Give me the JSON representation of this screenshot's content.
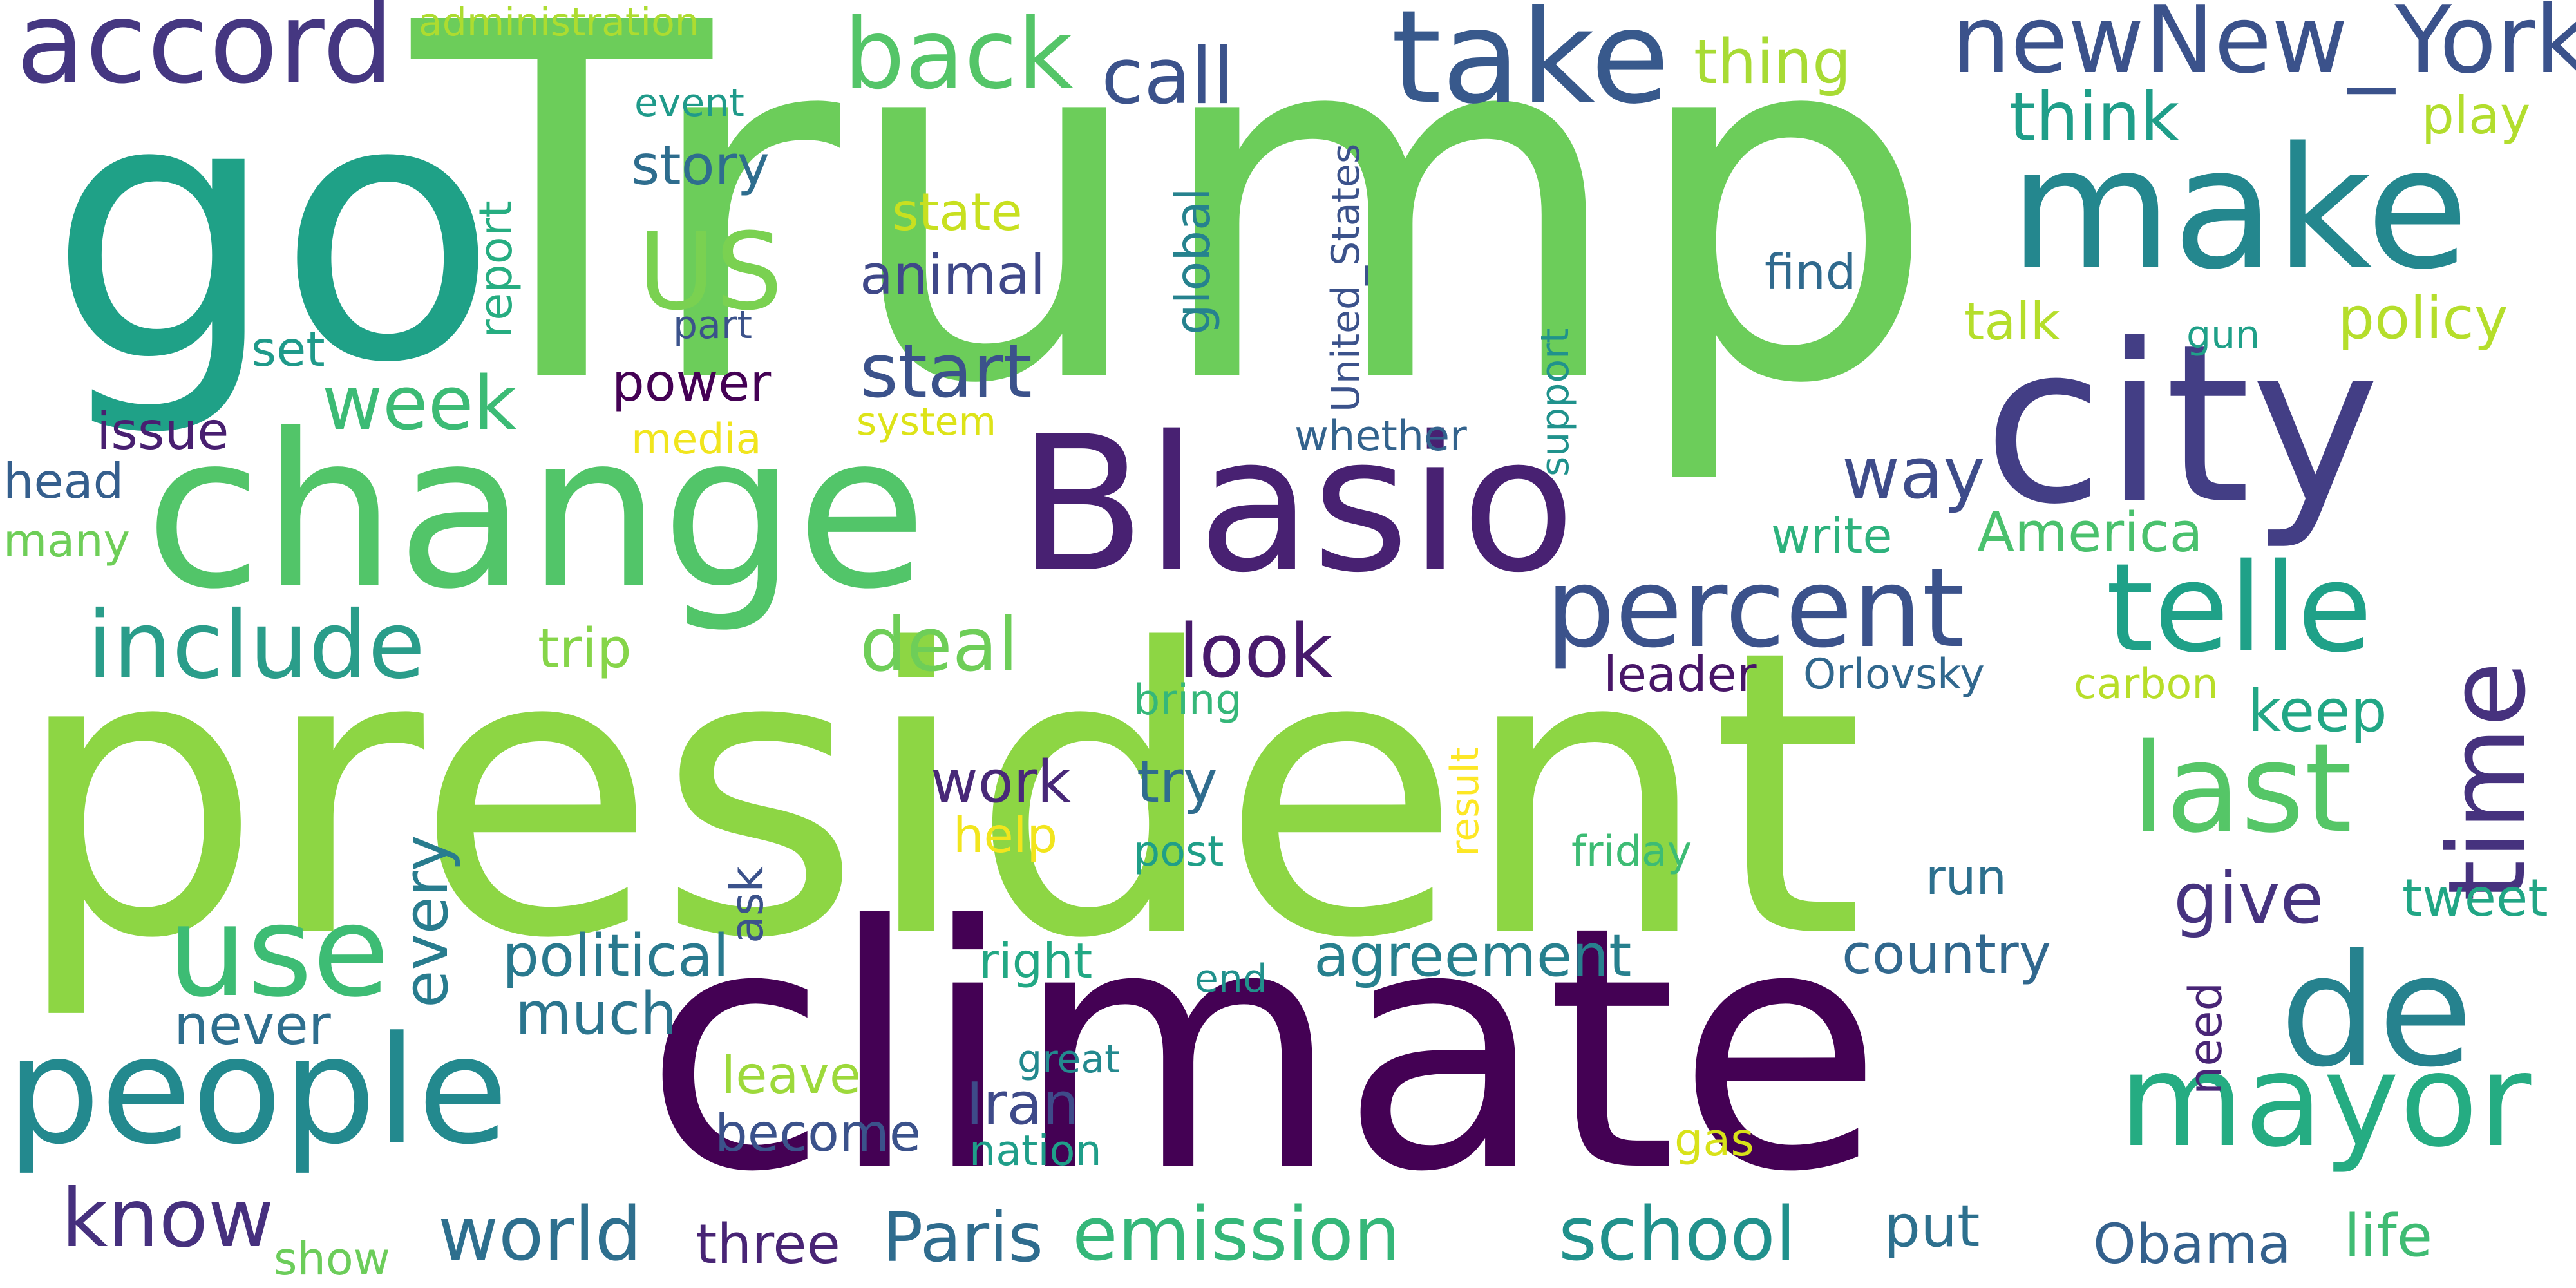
{
  "words": {
    "trump": {
      "text": "Trump",
      "color": "#6ccd5a"
    },
    "president": {
      "text": "president",
      "color": "#8dd644"
    },
    "climate": {
      "text": "climate",
      "color": "#440154"
    },
    "go": {
      "text": "go",
      "color": "#1fa187"
    },
    "change": {
      "text": "change",
      "color": "#52c569"
    },
    "blasio": {
      "text": "Blasio",
      "color": "#482172"
    },
    "city": {
      "text": "city",
      "color": "#433e85"
    },
    "make": {
      "text": "make",
      "color": "#24878e"
    },
    "take": {
      "text": "take",
      "color": "#38598c"
    },
    "people": {
      "text": "people",
      "color": "#23898e"
    },
    "mayor": {
      "text": "mayor",
      "color": "#25ac82"
    },
    "de": {
      "text": "de",
      "color": "#26828e"
    },
    "telle": {
      "text": "telle",
      "color": "#1fa188"
    },
    "time": {
      "text": "time",
      "color": "#46327e"
    },
    "last": {
      "text": "last",
      "color": "#55c667"
    },
    "percent": {
      "text": "percent",
      "color": "#3b528b"
    },
    "accord": {
      "text": "accord",
      "color": "#453781"
    },
    "back": {
      "text": "back",
      "color": "#54c568"
    },
    "newnewyork": {
      "text": "newNew_York",
      "color": "#3b528b"
    },
    "include": {
      "text": "include",
      "color": "#2a9d8a"
    },
    "use": {
      "text": "use",
      "color": "#3dbc74"
    },
    "world": {
      "text": "world",
      "color": "#2e6f8e"
    },
    "paris": {
      "text": "Paris",
      "color": "#2f6c8e"
    },
    "emission": {
      "text": "emission",
      "color": "#35b779"
    },
    "school": {
      "text": "school",
      "color": "#21918c"
    },
    "know": {
      "text": "know",
      "color": "#46307e"
    },
    "call": {
      "text": "call",
      "color": "#3b528b"
    },
    "us": {
      "text": "US",
      "color": "#7ad151"
    },
    "week": {
      "text": "week",
      "color": "#3cbb75"
    },
    "start": {
      "text": "start",
      "color": "#3b528b"
    },
    "deal": {
      "text": "deal",
      "color": "#6ece58"
    },
    "look": {
      "text": "look",
      "color": "#481a6c"
    },
    "think": {
      "text": "think",
      "color": "#1f9e89"
    },
    "thing": {
      "text": "thing",
      "color": "#a8db34"
    },
    "way": {
      "text": "way",
      "color": "#3e4c8a"
    },
    "give": {
      "text": "give",
      "color": "#46337f"
    },
    "agreement": {
      "text": "agreement",
      "color": "#27808e"
    },
    "political": {
      "text": "political",
      "color": "#29798e"
    },
    "country": {
      "text": "country",
      "color": "#31688e"
    },
    "every": {
      "text": "every",
      "color": "#287c8e"
    },
    "policy": {
      "text": "policy",
      "color": "#b5de2b"
    },
    "story": {
      "text": "story",
      "color": "#2e6d8e"
    },
    "animal": {
      "text": "animal",
      "color": "#3f4889"
    },
    "state": {
      "text": "state",
      "color": "#c8e020"
    },
    "play": {
      "text": "play",
      "color": "#b2dd2d"
    },
    "america": {
      "text": "America",
      "color": "#4ac16d"
    },
    "write": {
      "text": "write",
      "color": "#2db27d"
    },
    "work": {
      "text": "work",
      "color": "#482878"
    },
    "try": {
      "text": "try",
      "color": "#2f6c8e"
    },
    "keep": {
      "text": "keep",
      "color": "#22a785"
    },
    "tweet": {
      "text": "tweet",
      "color": "#21a685"
    },
    "much": {
      "text": "much",
      "color": "#2b758e"
    },
    "never": {
      "text": "never",
      "color": "#2e6e8e"
    },
    "iran": {
      "text": "Iran",
      "color": "#3e4a89"
    },
    "become": {
      "text": "become",
      "color": "#3b528b"
    },
    "obama": {
      "text": "Obama",
      "color": "#34618d"
    },
    "put": {
      "text": "put",
      "color": "#2d708e"
    },
    "three": {
      "text": "three",
      "color": "#482475"
    },
    "life": {
      "text": "life",
      "color": "#3fbc73"
    },
    "leave": {
      "text": "leave",
      "color": "#9dd93b"
    },
    "power": {
      "text": "power",
      "color": "#440154"
    },
    "issue": {
      "text": "issue",
      "color": "#481f70"
    },
    "head": {
      "text": "head",
      "color": "#355f8d"
    },
    "many": {
      "text": "many",
      "color": "#6ece58"
    },
    "set": {
      "text": "set",
      "color": "#1f9a8a"
    },
    "trip": {
      "text": "trip",
      "color": "#86d549"
    },
    "talk": {
      "text": "talk",
      "color": "#b5de2b"
    },
    "find": {
      "text": "find",
      "color": "#306a8e"
    },
    "leader": {
      "text": "leader",
      "color": "#481668"
    },
    "orlovsky": {
      "text": "Orlovsky",
      "color": "#31688e"
    },
    "carbon": {
      "text": "carbon",
      "color": "#b8de29"
    },
    "bring": {
      "text": "bring",
      "color": "#35b779"
    },
    "help": {
      "text": "help",
      "color": "#f2e51d"
    },
    "post": {
      "text": "post",
      "color": "#1f9f88"
    },
    "friday": {
      "text": "friday",
      "color": "#3dbc74"
    },
    "run": {
      "text": "run",
      "color": "#2d708e"
    },
    "right": {
      "text": "right",
      "color": "#22a884"
    },
    "end": {
      "text": "end",
      "color": "#21918c"
    },
    "great": {
      "text": "great",
      "color": "#23898e"
    },
    "nation": {
      "text": "nation",
      "color": "#1f9e89"
    },
    "gas": {
      "text": "gas",
      "color": "#d8e219"
    },
    "show": {
      "text": "show",
      "color": "#6ccd5a"
    },
    "administration": {
      "text": "administration",
      "color": "#addc30"
    },
    "event": {
      "text": "event",
      "color": "#1f9a8a"
    },
    "part": {
      "text": "part",
      "color": "#3b528b"
    },
    "media": {
      "text": "media",
      "color": "#f1e51d"
    },
    "system": {
      "text": "system",
      "color": "#dde318"
    },
    "whether": {
      "text": "whether",
      "color": "#33638d"
    },
    "gun": {
      "text": "gun",
      "color": "#1fa088"
    },
    "report": {
      "text": "report",
      "color": "#26ad81"
    },
    "global": {
      "text": "global",
      "color": "#26828e"
    },
    "united_states": {
      "text": "United_States",
      "color": "#3b528b"
    },
    "support": {
      "text": "support",
      "color": "#20928c"
    },
    "ask": {
      "text": "ask",
      "color": "#3b528b"
    },
    "result": {
      "text": "result",
      "color": "#fde725"
    },
    "need": {
      "text": "need",
      "color": "#482576"
    }
  }
}
